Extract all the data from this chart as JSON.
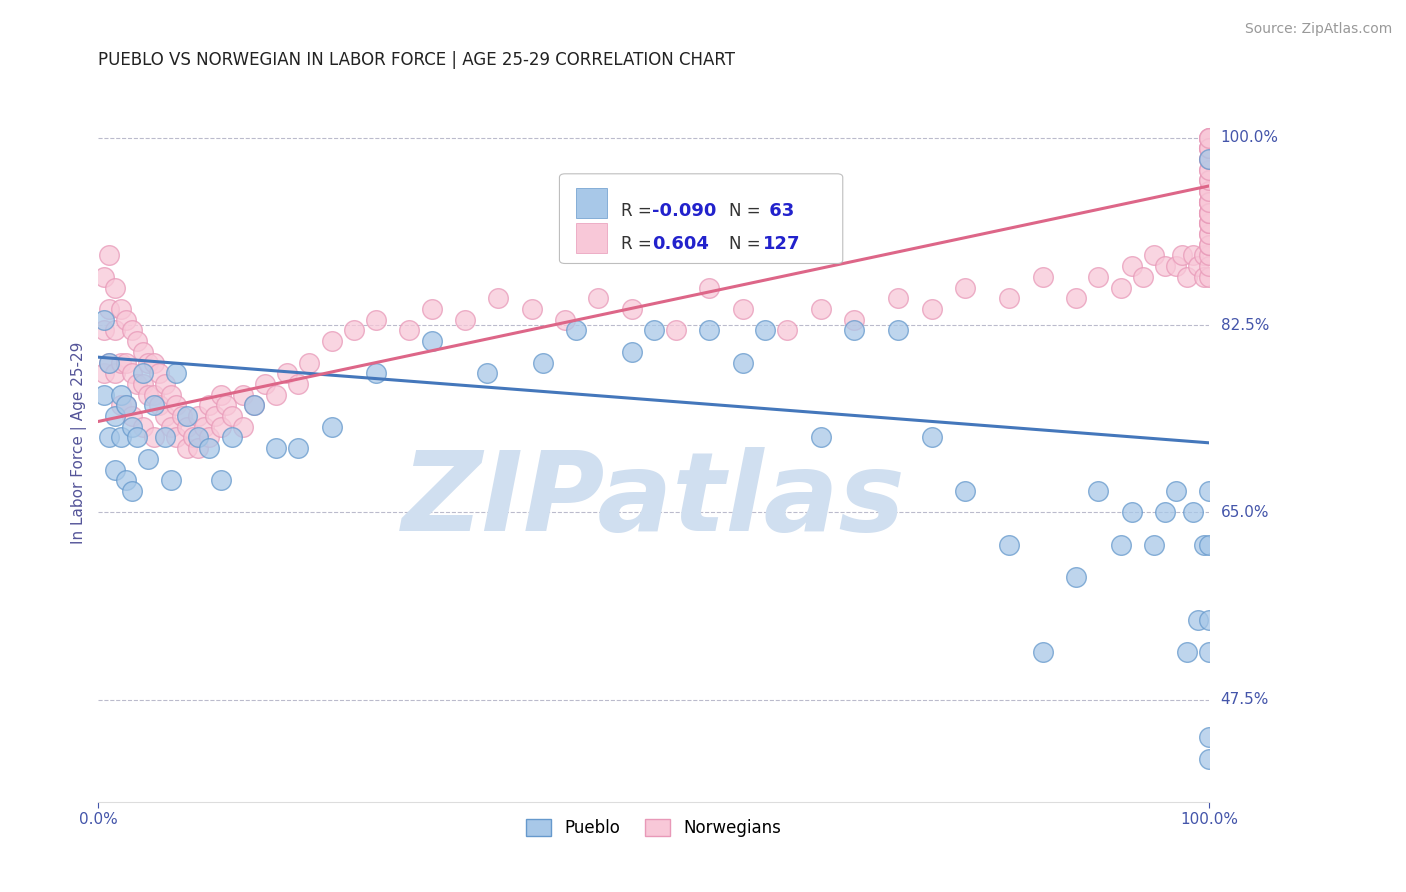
{
  "title": "PUEBLO VS NORWEGIAN IN LABOR FORCE | AGE 25-29 CORRELATION CHART",
  "source_text": "Source: ZipAtlas.com",
  "ylabel": "In Labor Force | Age 25-29",
  "x_min": 0.0,
  "x_max": 1.0,
  "y_min": 0.38,
  "y_max": 1.05,
  "y_ticks": [
    0.475,
    0.65,
    0.825,
    1.0
  ],
  "y_tick_labels": [
    "47.5%",
    "65.0%",
    "82.5%",
    "100.0%"
  ],
  "x_ticks": [
    0.0,
    1.0
  ],
  "x_tick_labels": [
    "0.0%",
    "100.0%"
  ],
  "pueblo_R": -0.09,
  "pueblo_N": 63,
  "norwegian_R": 0.604,
  "norwegian_N": 127,
  "pueblo_color": "#a8c8e8",
  "pueblo_edge_color": "#6699cc",
  "norwegian_color": "#f8c8d8",
  "norwegian_edge_color": "#e899b8",
  "pueblo_line_color": "#4477bb",
  "norwegian_line_color": "#dd6688",
  "title_color": "#222222",
  "axis_label_color": "#555599",
  "tick_label_color": "#4455aa",
  "watermark_color": "#d0dff0",
  "watermark_text": "ZIPatlas",
  "background_color": "#ffffff",
  "grid_color": "#bbbbcc",
  "legend_R_color": "#2222cc",
  "legend_border_color": "#bbbbbb",
  "source_color": "#999999",
  "pueblo_line_x0": 0.0,
  "pueblo_line_x1": 1.0,
  "pueblo_line_y0": 0.795,
  "pueblo_line_y1": 0.715,
  "norwegian_line_x0": 0.0,
  "norwegian_line_x1": 1.0,
  "norwegian_line_y0": 0.735,
  "norwegian_line_y1": 0.955,
  "pueblo_x": [
    0.005,
    0.005,
    0.01,
    0.01,
    0.015,
    0.015,
    0.02,
    0.02,
    0.025,
    0.025,
    0.03,
    0.03,
    0.035,
    0.04,
    0.045,
    0.05,
    0.06,
    0.065,
    0.07,
    0.08,
    0.09,
    0.1,
    0.11,
    0.12,
    0.14,
    0.16,
    0.18,
    0.21,
    0.25,
    0.3,
    0.35,
    0.4,
    0.43,
    0.48,
    0.5,
    0.55,
    0.58,
    0.6,
    0.65,
    0.68,
    0.72,
    0.75,
    0.78,
    0.82,
    0.85,
    0.88,
    0.9,
    0.92,
    0.93,
    0.95,
    0.96,
    0.97,
    0.98,
    0.985,
    0.99,
    0.995,
    1.0,
    1.0,
    1.0,
    1.0,
    1.0,
    1.0,
    1.0
  ],
  "pueblo_y": [
    0.83,
    0.76,
    0.72,
    0.79,
    0.74,
    0.69,
    0.76,
    0.72,
    0.75,
    0.68,
    0.73,
    0.67,
    0.72,
    0.78,
    0.7,
    0.75,
    0.72,
    0.68,
    0.78,
    0.74,
    0.72,
    0.71,
    0.68,
    0.72,
    0.75,
    0.71,
    0.71,
    0.73,
    0.78,
    0.81,
    0.78,
    0.79,
    0.82,
    0.8,
    0.82,
    0.82,
    0.79,
    0.82,
    0.72,
    0.82,
    0.82,
    0.72,
    0.67,
    0.62,
    0.52,
    0.59,
    0.67,
    0.62,
    0.65,
    0.62,
    0.65,
    0.67,
    0.52,
    0.65,
    0.55,
    0.62,
    0.67,
    0.52,
    0.55,
    0.62,
    0.44,
    0.42,
    0.98
  ],
  "norwegian_x": [
    0.005,
    0.005,
    0.005,
    0.01,
    0.01,
    0.01,
    0.015,
    0.015,
    0.015,
    0.02,
    0.02,
    0.02,
    0.025,
    0.025,
    0.025,
    0.03,
    0.03,
    0.03,
    0.035,
    0.035,
    0.04,
    0.04,
    0.04,
    0.045,
    0.045,
    0.05,
    0.05,
    0.05,
    0.055,
    0.055,
    0.06,
    0.06,
    0.065,
    0.065,
    0.07,
    0.07,
    0.075,
    0.08,
    0.08,
    0.085,
    0.09,
    0.09,
    0.095,
    0.1,
    0.1,
    0.105,
    0.11,
    0.11,
    0.115,
    0.12,
    0.13,
    0.13,
    0.14,
    0.15,
    0.16,
    0.17,
    0.18,
    0.19,
    0.21,
    0.23,
    0.25,
    0.28,
    0.3,
    0.33,
    0.36,
    0.39,
    0.42,
    0.45,
    0.48,
    0.52,
    0.55,
    0.58,
    0.62,
    0.65,
    0.68,
    0.72,
    0.75,
    0.78,
    0.82,
    0.85,
    0.88,
    0.9,
    0.92,
    0.93,
    0.94,
    0.95,
    0.96,
    0.97,
    0.975,
    0.98,
    0.985,
    0.99,
    0.995,
    0.995,
    1.0,
    1.0,
    1.0,
    1.0,
    1.0,
    1.0,
    1.0,
    1.0,
    1.0,
    1.0,
    1.0,
    1.0,
    1.0,
    1.0,
    1.0,
    1.0,
    1.0,
    1.0,
    1.0,
    1.0,
    1.0,
    1.0,
    1.0,
    1.0,
    1.0,
    1.0,
    1.0,
    1.0,
    1.0,
    1.0,
    1.0,
    1.0,
    1.0
  ],
  "norwegian_y": [
    0.87,
    0.82,
    0.78,
    0.89,
    0.84,
    0.79,
    0.86,
    0.82,
    0.78,
    0.84,
    0.79,
    0.75,
    0.83,
    0.79,
    0.75,
    0.82,
    0.78,
    0.74,
    0.81,
    0.77,
    0.8,
    0.77,
    0.73,
    0.79,
    0.76,
    0.79,
    0.76,
    0.72,
    0.78,
    0.75,
    0.77,
    0.74,
    0.76,
    0.73,
    0.75,
    0.72,
    0.74,
    0.73,
    0.71,
    0.72,
    0.71,
    0.74,
    0.73,
    0.72,
    0.75,
    0.74,
    0.73,
    0.76,
    0.75,
    0.74,
    0.76,
    0.73,
    0.75,
    0.77,
    0.76,
    0.78,
    0.77,
    0.79,
    0.81,
    0.82,
    0.83,
    0.82,
    0.84,
    0.83,
    0.85,
    0.84,
    0.83,
    0.85,
    0.84,
    0.82,
    0.86,
    0.84,
    0.82,
    0.84,
    0.83,
    0.85,
    0.84,
    0.86,
    0.85,
    0.87,
    0.85,
    0.87,
    0.86,
    0.88,
    0.87,
    0.89,
    0.88,
    0.88,
    0.89,
    0.87,
    0.89,
    0.88,
    0.87,
    0.89,
    0.87,
    0.88,
    0.89,
    0.9,
    0.91,
    0.92,
    0.9,
    0.91,
    0.93,
    0.92,
    0.94,
    0.93,
    0.92,
    0.94,
    0.93,
    0.95,
    0.94,
    0.93,
    0.95,
    0.94,
    0.96,
    0.95,
    0.97,
    0.96,
    0.98,
    0.97,
    0.99,
    0.98,
    1.0,
    0.99,
    1.0,
    0.99,
    1.0
  ]
}
